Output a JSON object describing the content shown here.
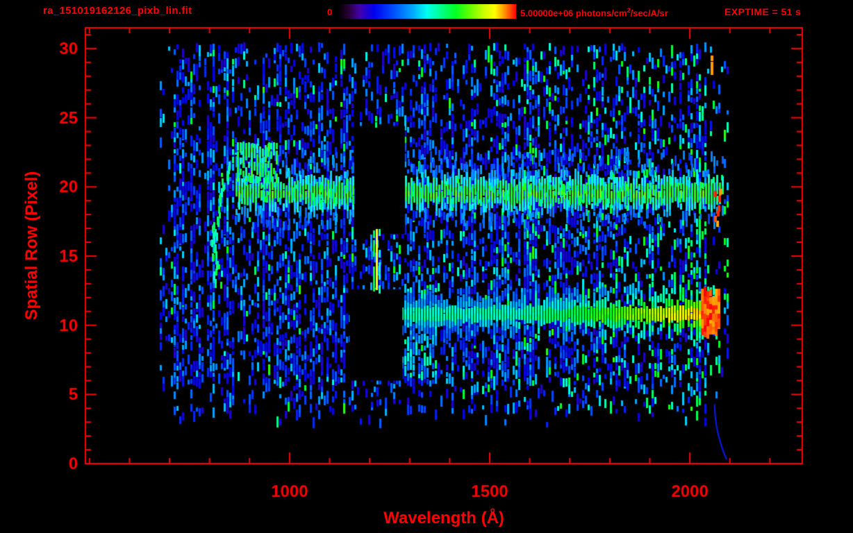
{
  "header": {
    "title": "ra_151019162126_pixb_lin.fit",
    "colorbar": {
      "min_label": "0",
      "max_value": "5.00000e+06",
      "unit_prefix": " photons/cm",
      "unit_sup": "2",
      "unit_suffix": "/sec/A/sr"
    },
    "exptime": "EXPTIME = 51 s"
  },
  "chart_data": {
    "type": "heatmap",
    "title": "ra_151019162126_pixb_lin.fit",
    "xlabel": "Wavelength (Å)",
    "ylabel": "Spatial Row (Pixel)",
    "xlim": [
      490,
      2281
    ],
    "ylim": [
      0,
      31.5
    ],
    "x_ticks": [
      1000,
      1500,
      2000
    ],
    "x_minor_step": 100,
    "y_ticks": [
      0,
      5,
      10,
      15,
      20,
      25,
      30
    ],
    "y_minor_step": 1,
    "colorbar_range": [
      0,
      5000000
    ],
    "colorbar_units": "photons/cm^2/sec/A/sr",
    "exptime_s": 51,
    "axis_color": "#ff0000",
    "background": "#000000",
    "colormap": [
      [
        0.0,
        "#000000"
      ],
      [
        0.06,
        "#2a0038"
      ],
      [
        0.12,
        "#4400aa"
      ],
      [
        0.2,
        "#0000ee"
      ],
      [
        0.32,
        "#0055ff"
      ],
      [
        0.42,
        "#00aaff"
      ],
      [
        0.5,
        "#00ffee"
      ],
      [
        0.58,
        "#00ff88"
      ],
      [
        0.66,
        "#00ff22"
      ],
      [
        0.74,
        "#66ff00"
      ],
      [
        0.82,
        "#ccff00"
      ],
      [
        0.88,
        "#ffff00"
      ],
      [
        0.94,
        "#ff8800"
      ],
      [
        1.0,
        "#ff0000"
      ]
    ],
    "features": {
      "noise": {
        "wl": [
          675,
          2095
        ],
        "rows": [
          3.0,
          30.4
        ],
        "density": 0.5
      },
      "upper_band": {
        "row_center": 19.6,
        "row_sigma": 1.05,
        "wl": [
          865,
          2085
        ],
        "intensity": 0.68
      },
      "hook_blob": {
        "wl": [
          868,
          968
        ],
        "rows": [
          20.6,
          23.2
        ],
        "intensity": 0.62
      },
      "arc": {
        "row_range": [
          12.8,
          22.0
        ],
        "vertex_wl": 812,
        "vertex_row": 16,
        "curve_up": 1.3,
        "curve_down": 0.9,
        "intensity": 0.58
      },
      "lower_band": {
        "row_center": 10.85,
        "row_sigma": 0.8,
        "wl": [
          1272,
          2068
        ],
        "intensity_start": 0.55,
        "ramp_wl": 1550,
        "intensity_end": 0.97
      },
      "red_blob": {
        "wl": [
          2028,
          2072
        ],
        "rows": [
          9.5,
          12.4
        ],
        "intensity": 0.96
      },
      "gaps": [
        {
          "wl": [
            1163,
            1288
          ],
          "rows": [
            16.6,
            24.4
          ]
        },
        {
          "wl": [
            1150,
            1282
          ],
          "rows": [
            6.0,
            12.6
          ]
        }
      ],
      "lya_line": {
        "wl_center": 1215,
        "wl_sigma": 7,
        "wl": [
          1202,
          1229
        ],
        "rows": [
          12.7,
          16.9
        ],
        "peak_intensity": 0.88
      },
      "lya_dash": {
        "wl": 1213,
        "rows": [
          24.5,
          25.1
        ],
        "intensity": 0.6
      },
      "post_gap_boost": {
        "wl": [
          1285,
          1365
        ],
        "rows": [
          6.0,
          13.0
        ]
      },
      "upper_band_red_edge": {
        "wl": [
          2058,
          2075
        ],
        "rows": [
          17.3,
          20.4
        ],
        "intensity": 0.95
      },
      "top_right_red_dash": {
        "wl": 2052,
        "rows": [
          28.3,
          29.4
        ],
        "intensity": 0.93
      },
      "blue_tail": {
        "wl_start": 2062,
        "wl_span": 30,
        "row_start": 4.3,
        "row_drop": 4.0,
        "intensity": 0.24
      }
    }
  }
}
